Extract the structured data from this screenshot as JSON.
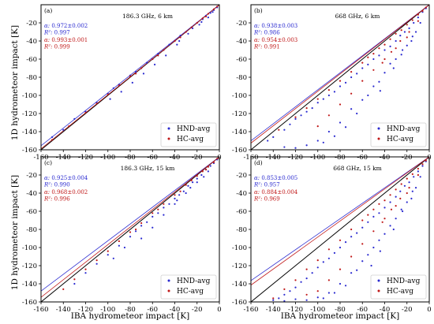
{
  "figure": {
    "ylabel": "1D hydrometeor impact [K]",
    "xlabel": "IBA hydrometeor impact [K]"
  },
  "colors": {
    "hnd": "#2a2ad0",
    "hc": "#c01818",
    "axis": "#000000"
  },
  "chart_data": [
    {
      "type": "scatter",
      "panel": "(a)",
      "title": "186.3 GHz, 6 km",
      "xlim": [
        -160,
        0
      ],
      "ylim": [
        -160,
        0
      ],
      "xticks": [
        -160,
        -140,
        -120,
        -100,
        -80,
        -60,
        -40,
        -20,
        0
      ],
      "yticks": [
        -160,
        -140,
        -120,
        -100,
        -80,
        -60,
        -40,
        -20
      ],
      "stats": [
        {
          "series": "HND-avg",
          "alpha": "0.972±0.002",
          "r2": "0.997"
        },
        {
          "series": "HC-avg",
          "alpha": "0.993±0.001",
          "r2": "0.999"
        }
      ],
      "fits": {
        "HND-avg": 0.972,
        "HC-avg": 0.993
      },
      "series": [
        {
          "name": "HND-avg",
          "x": [
            -2,
            -5,
            -8,
            -12,
            -15,
            -20,
            -25,
            -30,
            -35,
            -40,
            -45,
            -50,
            -55,
            -60,
            -65,
            -70,
            -75,
            -80,
            -90,
            -95,
            -100,
            -110,
            -120,
            -130,
            -140,
            -150,
            -10,
            -18,
            -28,
            -38,
            -48,
            -58,
            -68,
            -78,
            -88,
            -98,
            -36,
            -24,
            -16,
            -6
          ],
          "y": [
            -3,
            -6,
            -9,
            -12,
            -16,
            -20,
            -25,
            -30,
            -34,
            -40,
            -44,
            -50,
            -54,
            -60,
            -64,
            -70,
            -74,
            -78,
            -88,
            -92,
            -98,
            -108,
            -118,
            -126,
            -138,
            -146,
            -14,
            -22,
            -32,
            -44,
            -56,
            -66,
            -76,
            -86,
            -96,
            -104,
            -40,
            -26,
            -19,
            -8
          ]
        },
        {
          "name": "HC-avg",
          "x": [
            -2,
            -5,
            -10,
            -15,
            -20,
            -25,
            -30,
            -40,
            -50,
            -60,
            -70,
            -80,
            -90,
            -100,
            -110,
            -120,
            -135,
            -150,
            -12,
            -35,
            -55,
            -75
          ],
          "y": [
            -2,
            -5,
            -10,
            -15,
            -20,
            -25,
            -30,
            -40,
            -50,
            -60,
            -70,
            -79,
            -89,
            -99,
            -109,
            -119,
            -134,
            -149,
            -13,
            -36,
            -56,
            -76
          ]
        }
      ],
      "legend": [
        "HND-avg",
        "HC-avg"
      ],
      "legend_loc": "lower-right",
      "grid": false
    },
    {
      "type": "scatter",
      "panel": "(b)",
      "title": "668 GHz, 6 km",
      "xlim": [
        -160,
        0
      ],
      "ylim": [
        -160,
        0
      ],
      "xticks": [
        -160,
        -140,
        -120,
        -100,
        -80,
        -60,
        -40,
        -20,
        0
      ],
      "yticks": [
        -160,
        -140,
        -120,
        -100,
        -80,
        -60,
        -40,
        -20
      ],
      "stats": [
        {
          "series": "HND-avg",
          "alpha": "0.938±0.003",
          "r2": "0.986"
        },
        {
          "series": "HC-avg",
          "alpha": "0.954±0.003",
          "r2": "0.991"
        }
      ],
      "fits": {
        "HND-avg": 0.938,
        "HC-avg": 0.954
      },
      "series": [
        {
          "name": "HND-avg",
          "x": [
            -3,
            -6,
            -10,
            -14,
            -18,
            -22,
            -26,
            -30,
            -35,
            -40,
            -45,
            -50,
            -55,
            -60,
            -65,
            -70,
            -75,
            -80,
            -85,
            -90,
            -95,
            -100,
            -105,
            -110,
            -115,
            -120,
            -125,
            -130,
            -140,
            -145,
            -20,
            -30,
            -40,
            -50,
            -60,
            -70,
            -80,
            -90,
            -100,
            -110,
            -120,
            -130,
            -15,
            -25,
            -35,
            -45,
            -55,
            -65,
            -75,
            -85,
            -95,
            -8,
            -12,
            -16,
            -24,
            -32,
            -44
          ],
          "y": [
            -4,
            -8,
            -14,
            -20,
            -26,
            -30,
            -34,
            -40,
            -46,
            -50,
            -56,
            -60,
            -66,
            -70,
            -76,
            -80,
            -86,
            -90,
            -96,
            -100,
            -104,
            -108,
            -114,
            -118,
            -122,
            -126,
            -132,
            -138,
            -146,
            -150,
            -45,
            -60,
            -75,
            -90,
            -105,
            -115,
            -130,
            -140,
            -150,
            -155,
            -158,
            -157,
            -35,
            -55,
            -65,
            -85,
            -100,
            -120,
            -135,
            -145,
            -152,
            -20,
            -30,
            -40,
            -50,
            -70,
            -95
          ]
        },
        {
          "name": "HC-avg",
          "x": [
            -3,
            -6,
            -10,
            -15,
            -20,
            -25,
            -30,
            -35,
            -40,
            -45,
            -50,
            -55,
            -60,
            -70,
            -80,
            -90,
            -100,
            -110,
            -120,
            -135,
            -20,
            -30,
            -40,
            -50,
            -60,
            -70,
            -80,
            -90,
            -100,
            -10,
            -18,
            -26,
            -34,
            -42
          ],
          "y": [
            -3,
            -7,
            -11,
            -17,
            -22,
            -28,
            -32,
            -38,
            -44,
            -48,
            -54,
            -58,
            -64,
            -74,
            -84,
            -94,
            -104,
            -114,
            -124,
            -138,
            -36,
            -48,
            -60,
            -72,
            -84,
            -98,
            -110,
            -122,
            -134,
            -18,
            -30,
            -40,
            -52,
            -64
          ]
        }
      ],
      "legend": [
        "HND-avg",
        "HC-avg"
      ],
      "legend_loc": "lower-right",
      "grid": false
    },
    {
      "type": "scatter",
      "panel": "(c)",
      "title": "186.3 GHz, 15 km",
      "xlim": [
        -160,
        0
      ],
      "ylim": [
        -160,
        0
      ],
      "xticks": [
        -160,
        -140,
        -120,
        -100,
        -80,
        -60,
        -40,
        -20,
        0
      ],
      "yticks": [
        -160,
        -140,
        -120,
        -100,
        -80,
        -60,
        -40,
        -20
      ],
      "stats": [
        {
          "series": "HND-avg",
          "alpha": "0.925±0.004",
          "r2": "0.990"
        },
        {
          "series": "HC-avg",
          "alpha": "0.968±0.002",
          "r2": "0.996"
        }
      ],
      "fits": {
        "HND-avg": 0.925,
        "HC-avg": 0.968
      },
      "series": [
        {
          "name": "HND-avg",
          "x": [
            -2,
            -5,
            -8,
            -12,
            -16,
            -20,
            -24,
            -28,
            -32,
            -36,
            -40,
            -45,
            -50,
            -55,
            -60,
            -65,
            -70,
            -75,
            -80,
            -90,
            -100,
            -110,
            -120,
            -130,
            -10,
            -20,
            -30,
            -40,
            -50,
            -60,
            -70,
            -85,
            -95,
            -14,
            -26,
            -38
          ],
          "y": [
            -3,
            -7,
            -10,
            -14,
            -20,
            -24,
            -28,
            -32,
            -38,
            -42,
            -46,
            -52,
            -56,
            -62,
            -66,
            -72,
            -76,
            -82,
            -88,
            -98,
            -108,
            -118,
            -128,
            -140,
            -16,
            -28,
            -40,
            -52,
            -64,
            -78,
            -90,
            -100,
            -112,
            -22,
            -34,
            -48
          ]
        },
        {
          "name": "HC-avg",
          "x": [
            -2,
            -5,
            -10,
            -15,
            -20,
            -25,
            -30,
            -40,
            -50,
            -60,
            -70,
            -80,
            -90,
            -100,
            -110,
            -120,
            -130,
            -140,
            -12,
            -35,
            -55,
            -75
          ],
          "y": [
            -2,
            -6,
            -11,
            -16,
            -21,
            -26,
            -31,
            -42,
            -52,
            -62,
            -73,
            -83,
            -93,
            -104,
            -114,
            -124,
            -135,
            -146,
            -14,
            -38,
            -58,
            -80
          ]
        }
      ],
      "legend": [
        "HND-avg",
        "HC-avg"
      ],
      "legend_loc": "lower-right",
      "grid": false
    },
    {
      "type": "scatter",
      "panel": "(d)",
      "title": "668 GHz, 15 km",
      "xlim": [
        -160,
        0
      ],
      "ylim": [
        -160,
        0
      ],
      "xticks": [
        -160,
        -140,
        -120,
        -100,
        -80,
        -60,
        -40,
        -20,
        0
      ],
      "yticks": [
        -160,
        -140,
        -120,
        -100,
        -80,
        -60,
        -40,
        -20
      ],
      "stats": [
        {
          "series": "HND-avg",
          "alpha": "0.853±0.005",
          "r2": "0.957"
        },
        {
          "series": "HC-avg",
          "alpha": "0.884±0.004",
          "r2": "0.969"
        }
      ],
      "fits": {
        "HND-avg": 0.853,
        "HC-avg": 0.884
      },
      "series": [
        {
          "name": "HND-avg",
          "x": [
            -3,
            -6,
            -10,
            -14,
            -18,
            -22,
            -26,
            -30,
            -35,
            -40,
            -45,
            -50,
            -55,
            -60,
            -65,
            -70,
            -75,
            -80,
            -85,
            -90,
            -95,
            -100,
            -105,
            -110,
            -115,
            -120,
            -125,
            -130,
            -135,
            -140,
            -20,
            -30,
            -40,
            -50,
            -60,
            -70,
            -80,
            -90,
            -100,
            -110,
            -120,
            -130,
            -15,
            -25,
            -35,
            -45,
            -55,
            -65,
            -75,
            -85,
            -95,
            -8,
            -12,
            -16,
            -24,
            -32,
            -44,
            -52
          ],
          "y": [
            -5,
            -10,
            -16,
            -22,
            -28,
            -32,
            -38,
            -44,
            -50,
            -56,
            -62,
            -66,
            -72,
            -78,
            -84,
            -88,
            -94,
            -100,
            -106,
            -112,
            -116,
            -122,
            -128,
            -134,
            -138,
            -144,
            -148,
            -152,
            -156,
            -158,
            -50,
            -68,
            -85,
            -100,
            -115,
            -128,
            -140,
            -150,
            -155,
            -158,
            -157,
            -159,
            -38,
            -58,
            -76,
            -92,
            -108,
            -125,
            -142,
            -150,
            -156,
            -22,
            -34,
            -46,
            -60,
            -80,
            -104,
            -120
          ]
        },
        {
          "name": "HC-avg",
          "x": [
            -3,
            -6,
            -10,
            -15,
            -20,
            -25,
            -30,
            -35,
            -40,
            -45,
            -50,
            -55,
            -60,
            -70,
            -80,
            -90,
            -100,
            -110,
            -120,
            -130,
            -140,
            -20,
            -30,
            -40,
            -50,
            -60,
            -70,
            -80,
            -90,
            -100,
            -10,
            -18,
            -26,
            -34,
            -42,
            -110
          ],
          "y": [
            -4,
            -8,
            -13,
            -19,
            -24,
            -30,
            -36,
            -42,
            -48,
            -52,
            -58,
            -64,
            -70,
            -80,
            -92,
            -102,
            -114,
            -124,
            -136,
            -146,
            -156,
            -40,
            -54,
            -68,
            -82,
            -96,
            -110,
            -124,
            -136,
            -148,
            -20,
            -34,
            -46,
            -58,
            -72,
            -152
          ]
        }
      ],
      "legend": [
        "HND-avg",
        "HC-avg"
      ],
      "legend_loc": "lower-right",
      "grid": false
    }
  ]
}
